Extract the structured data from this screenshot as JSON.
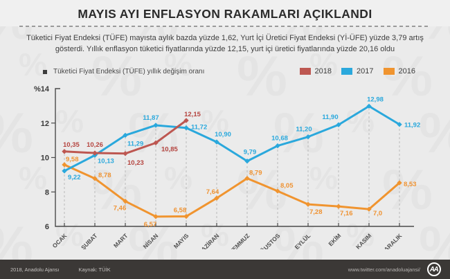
{
  "title": "MAYIS AYI ENFLASYON RAKAMLARI AÇIKLANDI",
  "subtitle_line1": "Tüketici Fiyat Endeksi (TÜFE) mayısta aylık bazda yüzde 1,62, Yurt İçi Üretici Fiyat Endeksi (Yİ-ÜFE) yüzde 3,79 artış",
  "subtitle_line2": "gösterdi. Yıllık enflasyon tüketici fiyatlarında yüzde 12,15, yurt içi üretici fiyatlarında yüzde 20,16 oldu",
  "legend": {
    "main_label": "Tüketici Fiyat Endeksi (TÜFE) yıllık değişim oranı",
    "items": [
      {
        "label": "2018",
        "color": "#bd5751"
      },
      {
        "label": "2017",
        "color": "#2aa8dc"
      },
      {
        "label": "2016",
        "color": "#f0942f"
      }
    ]
  },
  "chart_data": {
    "type": "line",
    "title": "Tüketici Fiyat Endeksi (TÜFE) yıllık değişim oranı",
    "xlabel": "",
    "ylabel": "%",
    "ylim": [
      6,
      14
    ],
    "yticks": [
      6,
      8,
      10,
      12,
      14
    ],
    "ytick_labels": [
      "6",
      "8",
      "10",
      "12",
      "%14"
    ],
    "grid": "dashed vertical guide from axis to top point of each month",
    "legend_position": "top-right",
    "categories": [
      "OCAK",
      "ŞUBAT",
      "MART",
      "NİSAN",
      "MAYIS",
      "HAZİRAN",
      "TEMMUZ",
      "AĞUSTOS",
      "EYLÜL",
      "EKİM",
      "KASIM",
      "ARALIK"
    ],
    "series": [
      {
        "name": "2016",
        "color": "#f0942f",
        "label_color": "#ef9231",
        "label_bold": false,
        "values": [
          9.58,
          8.78,
          7.46,
          6.57,
          6.58,
          7.64,
          8.79,
          8.05,
          7.28,
          7.16,
          7.0,
          8.53
        ],
        "labels": [
          "9,58",
          "8,78",
          "7,46",
          "6,57",
          "6,58",
          "7,64",
          "8,79",
          "8,05",
          "7,28",
          "7,16",
          "7,0",
          "8,53"
        ],
        "label_pos": [
          [
            2,
            -5,
            "start"
          ],
          [
            5,
            -2,
            "start"
          ],
          [
            -8,
            13,
            "middle"
          ],
          [
            -8,
            14,
            "middle"
          ],
          [
            -9,
            -6,
            "middle"
          ],
          [
            -6,
            -6,
            "middle"
          ],
          [
            3,
            -5,
            "start"
          ],
          [
            4,
            -5,
            "start"
          ],
          [
            2,
            14,
            "start"
          ],
          [
            2,
            13,
            "start"
          ],
          [
            6,
            9,
            "start"
          ],
          [
            6,
            5,
            "start"
          ]
        ]
      },
      {
        "name": "2017",
        "color": "#2aa8dc",
        "label_color": "#2aa8dc",
        "label_bold": false,
        "values": [
          9.22,
          10.13,
          11.29,
          11.87,
          11.72,
          10.9,
          9.79,
          10.68,
          11.2,
          11.9,
          12.98,
          11.92
        ],
        "labels": [
          "9,22",
          "10,13",
          "11,29",
          "11,87",
          "11,72",
          "10,90",
          "9,79",
          "10,68",
          "11,20",
          "11,90",
          "12,98",
          "11,92"
        ],
        "label_pos": [
          [
            5,
            12,
            "start"
          ],
          [
            4,
            11,
            "start"
          ],
          [
            3,
            15,
            "start"
          ],
          [
            -7,
            -8,
            "middle"
          ],
          [
            7,
            2,
            "start"
          ],
          [
            9,
            -8,
            "middle"
          ],
          [
            4,
            -10,
            "middle"
          ],
          [
            3,
            -8,
            "middle"
          ],
          [
            -6,
            -8,
            "middle"
          ],
          [
            -12,
            -8,
            "middle"
          ],
          [
            9,
            -7,
            "middle"
          ],
          [
            7,
            4,
            "start"
          ]
        ]
      },
      {
        "name": "2018",
        "color": "#bd5751",
        "label_color": "#b5443f",
        "label_bold": true,
        "values": [
          10.35,
          10.26,
          10.23,
          10.85,
          12.15
        ],
        "labels": [
          "10,35",
          "10,26",
          "10,23",
          "10,85",
          "12,15"
        ],
        "label_pos": [
          [
            -2,
            -7,
            "start"
          ],
          [
            0,
            -9,
            "middle"
          ],
          [
            3,
            16,
            "start"
          ],
          [
            8,
            12,
            "start"
          ],
          [
            9,
            -6,
            "middle"
          ]
        ]
      }
    ]
  },
  "footer": {
    "credit": "2018, Anadolu Ajansı",
    "source": "Kaynak: TÜİK",
    "url": "www.twitter.com/anadoluajansi/",
    "logo_text": "AA"
  }
}
